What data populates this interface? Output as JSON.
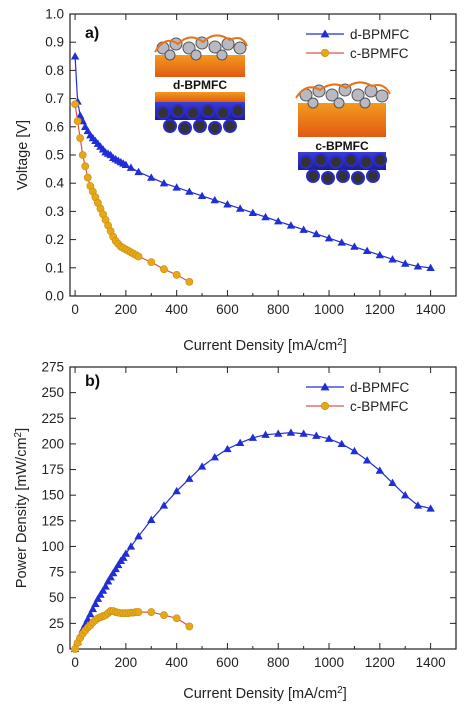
{
  "figure": {
    "panels": [
      {
        "label": "a)",
        "xlabel_main": "Current Density [mA/cm",
        "xlabel_sup": "2",
        "xlabel_end": "]",
        "ylabel": "Voltage [V]",
        "inset_labels": [
          "d-BPMFC",
          "c-BPMFC"
        ]
      },
      {
        "label": "b)",
        "xlabel_main": "Current Density [mA/cm",
        "xlabel_sup": "2",
        "xlabel_end": "]",
        "ylabel_main": "Power Density [mW/cm",
        "ylabel_sup": "2",
        "ylabel_end": "]"
      }
    ]
  },
  "chart_data": [
    {
      "type": "line",
      "xlabel": "Current Density [mA/cm2]",
      "ylabel": "Voltage [V]",
      "xlim": [
        -20,
        1500
      ],
      "ylim": [
        0,
        1.0
      ],
      "xticks": [
        0,
        200,
        400,
        600,
        800,
        1000,
        1200,
        1400
      ],
      "yticks": [
        0.0,
        0.1,
        0.2,
        0.3,
        0.4,
        0.5,
        0.6,
        0.7,
        0.8,
        0.9,
        1.0
      ],
      "legend_position": "top-right",
      "grid": false,
      "series": [
        {
          "name": "d-BPMFC",
          "color": "#1f2ed6",
          "marker": "triangle",
          "x": [
            0,
            10,
            20,
            30,
            40,
            50,
            60,
            70,
            80,
            90,
            100,
            110,
            120,
            130,
            140,
            150,
            160,
            170,
            180,
            190,
            200,
            220,
            250,
            300,
            350,
            400,
            450,
            500,
            550,
            600,
            650,
            700,
            750,
            800,
            850,
            900,
            950,
            1000,
            1050,
            1100,
            1150,
            1200,
            1250,
            1300,
            1350,
            1400
          ],
          "y": [
            0.85,
            0.69,
            0.64,
            0.62,
            0.6,
            0.585,
            0.57,
            0.56,
            0.55,
            0.54,
            0.53,
            0.52,
            0.51,
            0.505,
            0.5,
            0.49,
            0.485,
            0.48,
            0.475,
            0.47,
            0.465,
            0.455,
            0.44,
            0.42,
            0.4,
            0.385,
            0.37,
            0.355,
            0.34,
            0.325,
            0.31,
            0.295,
            0.28,
            0.265,
            0.25,
            0.235,
            0.22,
            0.205,
            0.19,
            0.175,
            0.16,
            0.145,
            0.13,
            0.115,
            0.105,
            0.1
          ]
        },
        {
          "name": "c-BPMFC",
          "color": "#e6a817",
          "line_color": "#d9534f",
          "marker": "circle",
          "x": [
            0,
            10,
            20,
            30,
            40,
            50,
            60,
            70,
            80,
            90,
            100,
            110,
            120,
            130,
            140,
            150,
            160,
            170,
            180,
            190,
            200,
            210,
            220,
            230,
            240,
            250,
            300,
            350,
            400,
            450
          ],
          "y": [
            0.68,
            0.62,
            0.56,
            0.5,
            0.46,
            0.42,
            0.39,
            0.37,
            0.35,
            0.33,
            0.31,
            0.29,
            0.27,
            0.25,
            0.23,
            0.21,
            0.195,
            0.185,
            0.175,
            0.17,
            0.165,
            0.16,
            0.155,
            0.15,
            0.145,
            0.14,
            0.12,
            0.095,
            0.075,
            0.05
          ]
        }
      ]
    },
    {
      "type": "line",
      "xlabel": "Current Density [mA/cm2]",
      "ylabel": "Power Density [mW/cm2]",
      "xlim": [
        -20,
        1500
      ],
      "ylim": [
        0,
        275
      ],
      "xticks": [
        0,
        200,
        400,
        600,
        800,
        1000,
        1200,
        1400
      ],
      "yticks": [
        0,
        25,
        50,
        75,
        100,
        125,
        150,
        175,
        200,
        225,
        250,
        275
      ],
      "legend_position": "top-right",
      "grid": false,
      "series": [
        {
          "name": "d-BPMFC",
          "color": "#1f2ed6",
          "marker": "triangle",
          "x": [
            0,
            10,
            20,
            30,
            40,
            50,
            60,
            70,
            80,
            90,
            100,
            110,
            120,
            130,
            140,
            150,
            160,
            170,
            180,
            190,
            200,
            220,
            250,
            300,
            350,
            400,
            450,
            500,
            550,
            600,
            650,
            700,
            750,
            800,
            850,
            900,
            950,
            1000,
            1050,
            1100,
            1150,
            1200,
            1250,
            1300,
            1350,
            1400
          ],
          "y": [
            0,
            7,
            13,
            19,
            24,
            29,
            34,
            39,
            44,
            49,
            53,
            57,
            61,
            66,
            70,
            74,
            78,
            82,
            86,
            89,
            93,
            100,
            110,
            126,
            140,
            154,
            166,
            178,
            187,
            195,
            201,
            206,
            209,
            210,
            211,
            210,
            208,
            205,
            200,
            193,
            184,
            174,
            162,
            150,
            140,
            137
          ]
        },
        {
          "name": "c-BPMFC",
          "color": "#e6a817",
          "line_color": "#d9534f",
          "marker": "circle",
          "x": [
            0,
            10,
            20,
            30,
            40,
            50,
            60,
            70,
            80,
            90,
            100,
            110,
            120,
            130,
            140,
            150,
            160,
            170,
            180,
            190,
            200,
            210,
            220,
            230,
            240,
            250,
            300,
            350,
            400,
            450
          ],
          "y": [
            0,
            6,
            11,
            15,
            18,
            21,
            23,
            26,
            28,
            30,
            31,
            32,
            33,
            35,
            37,
            37,
            36,
            35.5,
            35,
            35,
            35,
            35,
            35.5,
            35.5,
            36,
            36,
            36,
            33,
            30,
            22
          ]
        }
      ]
    }
  ]
}
